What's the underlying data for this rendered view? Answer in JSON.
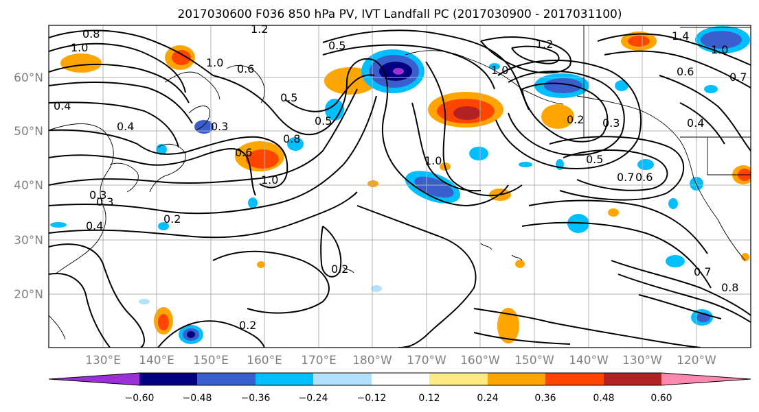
{
  "title": "2017030600 F036 850 hPa PV, IVT Landfall PC (2017030900 - 2017031100)",
  "map": {
    "lat_ticks": [
      "60°N",
      "50°N",
      "40°N",
      "30°N",
      "20°N"
    ],
    "lon_ticks": [
      "130°E",
      "140°E",
      "150°E",
      "160°E",
      "170°E",
      "180°W",
      "170°W",
      "160°W",
      "150°W",
      "140°W",
      "130°W",
      "120°W"
    ],
    "contour_labels": [
      "0.8",
      "1.0",
      "1.2",
      "1.4",
      "1.0",
      "0.7",
      "1.2",
      "1.0",
      "0.6",
      "0.4",
      "0.5",
      "0.3",
      "0.4",
      "0.3",
      "0.6",
      "0.8",
      "1.0",
      "0.5",
      "1.0",
      "0.2",
      "0.3",
      "0.4",
      "0.5",
      "0.7",
      "0.6",
      "0.2",
      "0.2",
      "0.2",
      "0.7",
      "0.8",
      "0.5",
      "1.0",
      "0.6",
      "0.4",
      "0.3"
    ]
  },
  "colorbar": {
    "tick_labels": [
      "−0.60",
      "−0.48",
      "−0.36",
      "−0.24",
      "−0.12",
      "0.12",
      "0.24",
      "0.36",
      "0.48",
      "0.60"
    ],
    "bins": [
      {
        "range": "< -0.60",
        "color": "#9b30d9"
      },
      {
        "range": "-0.60 to -0.48",
        "color": "#000080"
      },
      {
        "range": "-0.48 to -0.36",
        "color": "#3a5fcd"
      },
      {
        "range": "-0.36 to -0.24",
        "color": "#00bfff"
      },
      {
        "range": "-0.24 to -0.12",
        "color": "#b2e2ff"
      },
      {
        "range": "-0.12 to 0.12",
        "color": "#ffffff"
      },
      {
        "range": "0.12 to 0.24",
        "color": "#ffea84"
      },
      {
        "range": "0.24 to 0.36",
        "color": "#ffa500"
      },
      {
        "range": "0.36 to 0.48",
        "color": "#ff4500"
      },
      {
        "range": "0.48 to 0.60",
        "color": "#b22222"
      },
      {
        "range": "> 0.60",
        "color": "#ff88b0"
      }
    ]
  }
}
